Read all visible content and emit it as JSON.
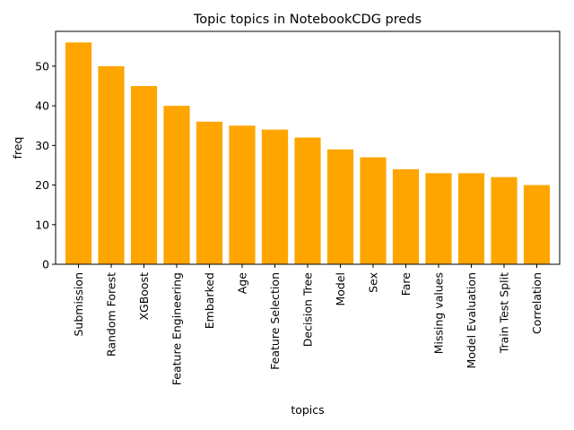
{
  "chart_data": {
    "type": "bar",
    "title": "Topic topics in NotebookCDG preds",
    "xlabel": "topics",
    "ylabel": "freq",
    "categories": [
      "Submission",
      "Random Forest",
      "XGBoost",
      "Feature Engineering",
      "Embarked",
      "Age",
      "Feature Selection",
      "Decision Tree",
      "Model",
      "Sex",
      "Fare",
      "Missing values",
      "Model Evaluation",
      "Train Test Split",
      "Correlation"
    ],
    "values": [
      56,
      50,
      45,
      40,
      36,
      35,
      34,
      32,
      29,
      27,
      24,
      23,
      23,
      22,
      20
    ],
    "ylim": [
      0,
      58.8
    ],
    "yticks": [
      0,
      10,
      20,
      30,
      40,
      50
    ],
    "bar_color": "#ffa500",
    "grid": false,
    "legend": "none"
  }
}
